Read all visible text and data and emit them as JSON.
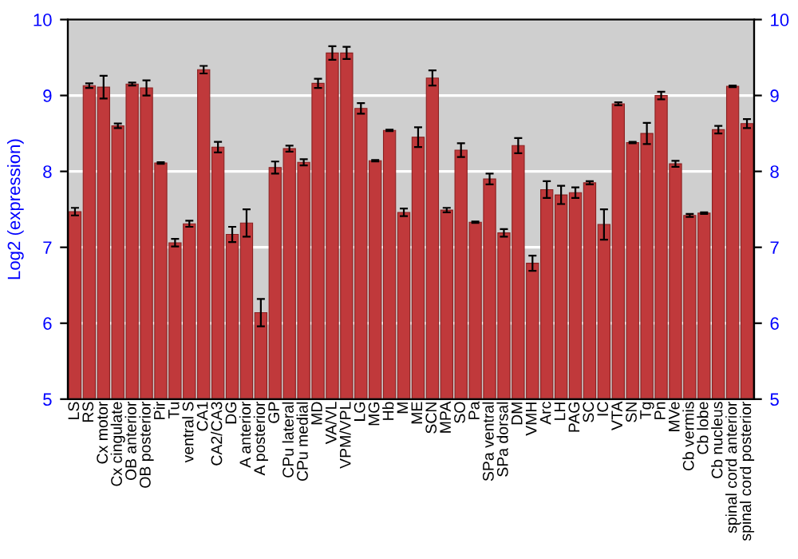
{
  "chart_data": {
    "type": "bar",
    "ylabel": "Log2 (expression)",
    "categories": [
      "LS",
      "RS",
      "Cx motor",
      "Cx cingulate",
      "OB anterior",
      "OB posterior",
      "Pir",
      "Tu",
      "ventral S",
      "CA1",
      "CA2/CA3",
      "DG",
      "A anterior",
      "A posterior",
      "GP",
      "CPu lateral",
      "CPu medial",
      "MD",
      "VA/VL",
      "VPM/VPL",
      "LG",
      "MG",
      "Hb",
      "M",
      "ME",
      "SCN",
      "MPA",
      "SO",
      "Pa",
      "SPa ventral",
      "SPa dorsal",
      "DM",
      "VMH",
      "Arc",
      "LH",
      "PAG",
      "SC",
      "IC",
      "VTA",
      "SN",
      "Tg",
      "Pn",
      "MVe",
      "Cb vermis",
      "Cb lobe",
      "Cb nucleus",
      "spinal cord anterior",
      "spinal cord posterior"
    ],
    "values": [
      7.47,
      9.13,
      9.11,
      8.6,
      9.15,
      9.1,
      8.11,
      7.06,
      7.31,
      9.34,
      8.32,
      7.17,
      7.32,
      6.14,
      8.05,
      8.3,
      8.12,
      9.16,
      9.56,
      9.56,
      8.83,
      8.14,
      8.54,
      7.46,
      8.45,
      9.23,
      7.49,
      8.28,
      7.33,
      7.9,
      7.19,
      8.34,
      6.79,
      7.76,
      7.69,
      7.72,
      7.85,
      7.3,
      8.89,
      8.38,
      8.5,
      9.0,
      8.1,
      7.42,
      7.45,
      8.55,
      9.12,
      8.63
    ],
    "errors": [
      0.05,
      0.03,
      0.15,
      0.03,
      0.02,
      0.1,
      0.01,
      0.05,
      0.04,
      0.05,
      0.07,
      0.1,
      0.18,
      0.18,
      0.08,
      0.04,
      0.04,
      0.06,
      0.09,
      0.08,
      0.07,
      0.01,
      0.01,
      0.05,
      0.13,
      0.1,
      0.03,
      0.09,
      0.01,
      0.07,
      0.05,
      0.1,
      0.1,
      0.11,
      0.12,
      0.07,
      0.02,
      0.2,
      0.02,
      0.01,
      0.14,
      0.05,
      0.04,
      0.02,
      0.01,
      0.05,
      0.01,
      0.06
    ],
    "color": "#c0393b",
    "ylim": [
      5,
      10
    ],
    "yticks": [
      5,
      6,
      7,
      8,
      9,
      10
    ],
    "y2lim": [
      5,
      10
    ],
    "y2ticks": [
      5,
      6,
      7,
      8,
      9,
      10
    ],
    "grid": "y"
  }
}
